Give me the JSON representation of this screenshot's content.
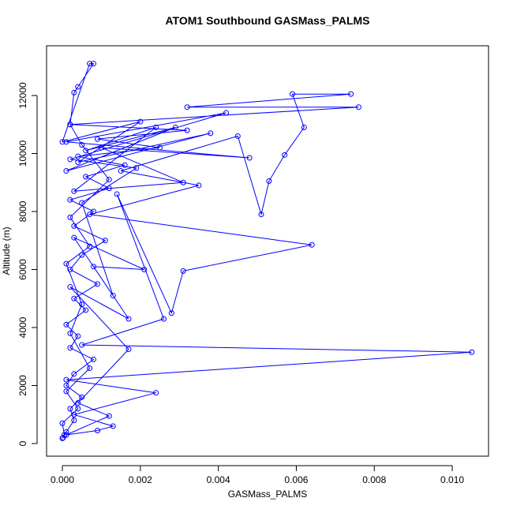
{
  "chart_data": {
    "type": "line",
    "title": "ATOM1 Southbound GASMass_PALMS",
    "xlabel": "GASMass_PALMS",
    "ylabel": "Altitude (m)",
    "color": "#0000ff",
    "markers": true,
    "xlim": [
      -0.000405,
      0.01093
    ],
    "ylim": [
      -435,
      13714
    ],
    "xticks": [
      {
        "value": 0,
        "label": "0.000"
      },
      {
        "value": 0.002,
        "label": "0.002"
      },
      {
        "value": 0.004,
        "label": "0.004"
      },
      {
        "value": 0.006,
        "label": "0.006"
      },
      {
        "value": 0.008,
        "label": "0.008"
      },
      {
        "value": 0.01,
        "label": "0.010"
      }
    ],
    "yticks": [
      0,
      2000,
      4000,
      6000,
      8000,
      10000,
      12000
    ],
    "x": [
      2e-05,
      0.0001,
      0.0003,
      0.0002,
      0.0005,
      0.0001,
      0.0003,
      0.0008,
      0.0002,
      0.0004,
      0.0001,
      0.0006,
      0.0003,
      0.0009,
      0.0002,
      0.0005,
      0.0011,
      0.0003,
      0.0008,
      0.0002,
      0.0012,
      0.0006,
      0.0016,
      0.0004,
      0.0025,
      0.0009,
      0.0032,
      0.0002,
      0.0076,
      0.0032,
      0.0074,
      0.0059,
      0.0062,
      0.0057,
      0.0053,
      0.0051,
      0.0045,
      0.0015,
      0.0035,
      0.0007,
      0.0064,
      0.0031,
      0.0028,
      0.0014,
      0.0026,
      0.0005,
      0.0105,
      0.0001,
      0.0024,
      0.0003,
      0.0013,
      0.0009,
      0.0001,
      0.0012,
      0.0004,
      0.0017,
      0.0002,
      0.0017,
      0.0008,
      0.0021,
      0.0003,
      0.0013,
      0.0005,
      0.0019,
      0.0002,
      0.0042,
      0.0001,
      0.0048,
      0.001,
      0.0031,
      0.0003,
      0.0024,
      0.0006,
      0.0029,
      0.0001,
      0.0038,
      0.0004,
      0.002,
      0,
      0.0007,
      0.0008,
      0.0004,
      0.0003,
      0.0002,
      0.0005,
      0.0012,
      0.0002,
      0.0007,
      0.0001,
      0.0005,
      0.0002,
      0.0007,
      0.0001,
      0.0004,
      0,
      5e-05,
      0
    ],
    "values": [
      200,
      400,
      800,
      1200,
      1600,
      2000,
      2400,
      2900,
      3300,
      3700,
      4100,
      4600,
      5000,
      5500,
      6000,
      6500,
      7000,
      7500,
      8000,
      8400,
      8800,
      9200,
      9600,
      9900,
      10200,
      10500,
      10800,
      11000,
      11600,
      11600,
      12050,
      12050,
      10900,
      9950,
      9050,
      7900,
      10600,
      9400,
      8900,
      7900,
      6850,
      5950,
      4500,
      8600,
      4300,
      3400,
      3150,
      2200,
      1750,
      1000,
      600,
      450,
      300,
      950,
      1400,
      3250,
      5400,
      4300,
      6100,
      6000,
      7100,
      5100,
      8300,
      9500,
      9800,
      11400,
      10400,
      9850,
      10200,
      9000,
      8700,
      10900,
      10100,
      10900,
      9400,
      10700,
      9700,
      11100,
      10400,
      13100,
      13100,
      12300,
      12100,
      11000,
      10300,
      9100,
      7800,
      6800,
      6200,
      4800,
      3800,
      2600,
      1800,
      1200,
      700,
      300,
      180
    ]
  }
}
